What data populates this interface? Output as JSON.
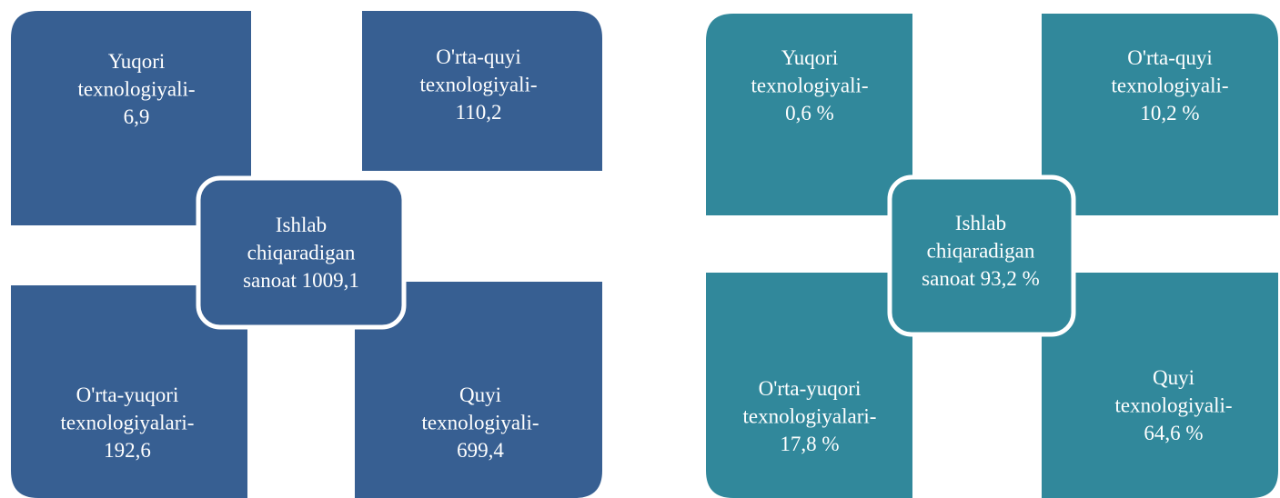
{
  "diagrams": [
    {
      "quadrants": [
        {
          "lines": [
            "Yuqori",
            "texnologiyali-",
            "6,9"
          ]
        },
        {
          "lines": [
            "O'rta-quyi",
            "texnologiyali-",
            "110,2"
          ]
        },
        {
          "lines": [
            "O'rta-yuqori",
            "texnologiyalari-",
            "192,6"
          ]
        },
        {
          "lines": [
            "Quyi",
            "texnologiyali-",
            "699,4"
          ]
        }
      ],
      "center": {
        "lines": [
          "Ishlab",
          "chiqaradigan",
          "sanoat 1009,1"
        ]
      }
    },
    {
      "quadrants": [
        {
          "lines": [
            "Yuqori",
            "texnologiyali-",
            "0,6 %"
          ]
        },
        {
          "lines": [
            "O'rta-quyi",
            "texnologiyali-",
            "10,2 %"
          ]
        },
        {
          "lines": [
            "O'rta-yuqori",
            "texnologiyalari-",
            "17,8 %"
          ]
        },
        {
          "lines": [
            "Quyi",
            "texnologiyali-",
            "64,6 %"
          ]
        }
      ],
      "center": {
        "lines": [
          "Ishlab",
          "chiqaradigan",
          "sanoat 93,2 %"
        ]
      }
    }
  ]
}
